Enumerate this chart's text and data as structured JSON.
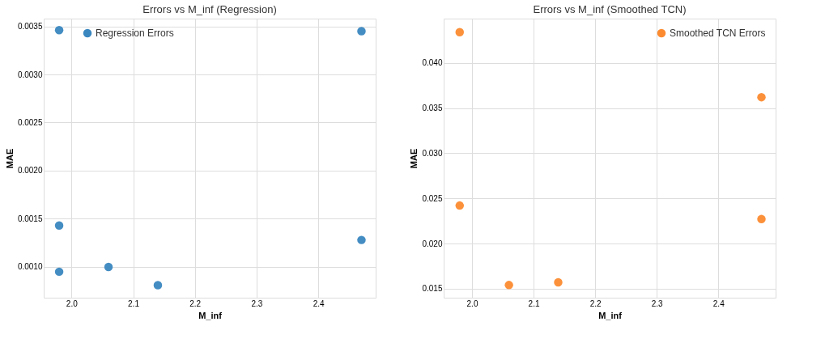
{
  "chart_data": [
    {
      "type": "scatter",
      "title": "Errors vs M_inf (Regression)",
      "xlabel": "M_inf",
      "ylabel": "MAE",
      "series": [
        {
          "name": "Regression Errors",
          "color": "#3a87c0",
          "x": [
            1.98,
            1.98,
            1.98,
            2.06,
            2.14,
            2.47,
            2.47
          ],
          "values": [
            0.00346,
            0.00143,
            0.00095,
            0.001,
            0.00081,
            0.00345,
            0.00128
          ]
        }
      ],
      "xlim": [
        1.955,
        2.493
      ],
      "ylim": [
        0.00068,
        0.00358
      ],
      "xticks": [
        {
          "value": 2.0,
          "label": "2.0"
        },
        2.1,
        2.2,
        2.3,
        2.4
      ],
      "yticks": [
        {
          "value": 0.001,
          "label": "0.0010"
        },
        0.0015,
        {
          "value": 0.002,
          "label": "0.0020"
        },
        0.0025,
        {
          "value": 0.003,
          "label": "0.0030"
        },
        0.0035
      ],
      "grid": true,
      "legend": "top left",
      "marker": "circle"
    },
    {
      "type": "scatter",
      "title": "Errors vs M_inf (Smoothed TCN)",
      "xlabel": "M_inf",
      "ylabel": "MAE",
      "series": [
        {
          "name": "Smoothed TCN Errors",
          "color": "#fc8b30",
          "x": [
            1.98,
            1.98,
            2.06,
            2.14,
            2.47,
            2.47
          ],
          "values": [
            0.0434,
            0.0242,
            0.0154,
            0.0157,
            0.0362,
            0.0227
          ]
        }
      ],
      "xlim": [
        1.954,
        2.493
      ],
      "ylim": [
        0.014,
        0.0449
      ],
      "xticks": [
        {
          "value": 2.0,
          "label": "2.0"
        },
        2.1,
        2.2,
        2.3,
        2.4
      ],
      "yticks": [
        0.015,
        {
          "value": 0.02,
          "label": "0.020"
        },
        0.025,
        {
          "value": 0.03,
          "label": "0.030"
        },
        0.035,
        {
          "value": 0.04,
          "label": "0.040"
        }
      ],
      "grid": true,
      "legend": "top right",
      "marker": "circle"
    }
  ]
}
